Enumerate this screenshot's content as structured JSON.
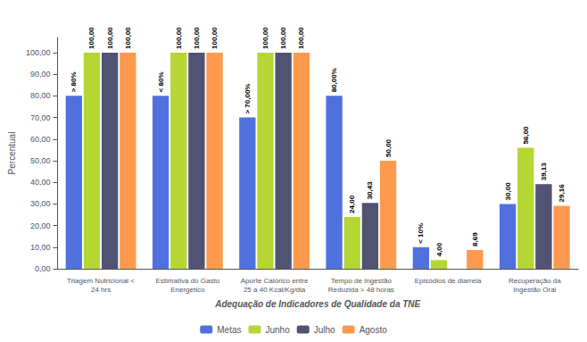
{
  "chart_data": {
    "type": "bar",
    "xlabel": "Adequação de Indicadores de Qualidade da TNE",
    "ylabel": "Percentual",
    "categories": [
      "Triagem Nutricional <\n24 hrs",
      "Estimativa do Gasto\nEnergético",
      "Aporte Calórico entre\n25 a 40 Kcal/Kg/dia",
      "Tempo de Ingestão\nReduzida > 48 horas",
      "Episódios de diarreia",
      "Recuperação da\nIngestão Oral"
    ],
    "series": [
      {
        "name": "Metas",
        "values": [
          80,
          80,
          70,
          80,
          10,
          30
        ],
        "value_labels": [
          "> 80%",
          "< 80%",
          "> 70,00%",
          "80,00%",
          "< 10%",
          "30,00"
        ]
      },
      {
        "name": "Junho",
        "values": [
          100,
          100,
          100,
          24,
          4,
          56
        ],
        "value_labels": [
          "100,00",
          "100,00",
          "100,00",
          "24,00",
          "4,00",
          "56,00"
        ]
      },
      {
        "name": "Julho",
        "values": [
          100,
          100,
          100,
          30.43,
          0,
          39.13
        ],
        "value_labels": [
          "100,00",
          "100,00",
          "100,00",
          "30,43",
          null,
          "39,13"
        ]
      },
      {
        "name": "Agosto",
        "values": [
          100,
          100,
          100,
          50,
          8.69,
          29.16
        ],
        "value_labels": [
          "100,00",
          "100,00",
          "100,00",
          "50,00",
          "8,69",
          "29,16"
        ]
      }
    ],
    "ylim": [
      0,
      107
    ],
    "yticks": [
      {
        "value": 0,
        "label": "0,00"
      },
      {
        "value": 10,
        "label": "10,00"
      },
      {
        "value": 20,
        "label": "20,00"
      },
      {
        "value": 30,
        "label": "30,00"
      },
      {
        "value": 40,
        "label": "40,00"
      },
      {
        "value": 50,
        "label": "50,00"
      },
      {
        "value": 60,
        "label": "60,00"
      },
      {
        "value": 70,
        "label": "70,00"
      },
      {
        "value": 80,
        "label": "80,00"
      },
      {
        "value": 90,
        "label": "90,00"
      },
      {
        "value": 100,
        "label": "100,00"
      }
    ],
    "grid": false,
    "legend": "bottom",
    "data_labels": true
  }
}
